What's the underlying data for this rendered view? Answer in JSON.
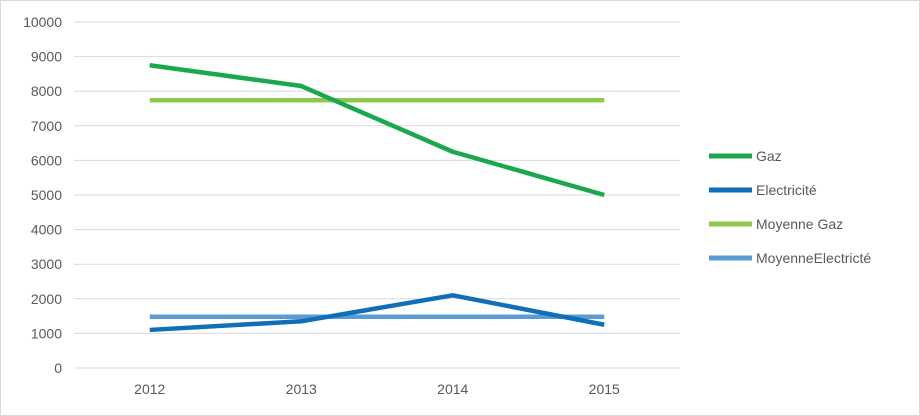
{
  "chart_data": {
    "type": "line",
    "categories": [
      "2012",
      "2013",
      "2014",
      "2015"
    ],
    "series": [
      {
        "name": "Gaz",
        "values": [
          8750,
          8150,
          6250,
          5000
        ],
        "color": "#1aa84f"
      },
      {
        "name": "Electricité",
        "values": [
          1100,
          1350,
          2100,
          1250
        ],
        "color": "#0f6fb8"
      },
      {
        "name": "Moyenne Gaz",
        "values": [
          7740,
          7740,
          7740,
          7740
        ],
        "color": "#8cc84b"
      },
      {
        "name": "MoyenneElectricté",
        "values": [
          1480,
          1480,
          1480,
          1480
        ],
        "color": "#5b9bd5"
      }
    ],
    "ylim": [
      0,
      10000
    ],
    "yticks": [
      "0",
      "1000",
      "2000",
      "3000",
      "4000",
      "5000",
      "6000",
      "7000",
      "8000",
      "9000",
      "10000"
    ],
    "grid": true,
    "legend_position": "right"
  }
}
